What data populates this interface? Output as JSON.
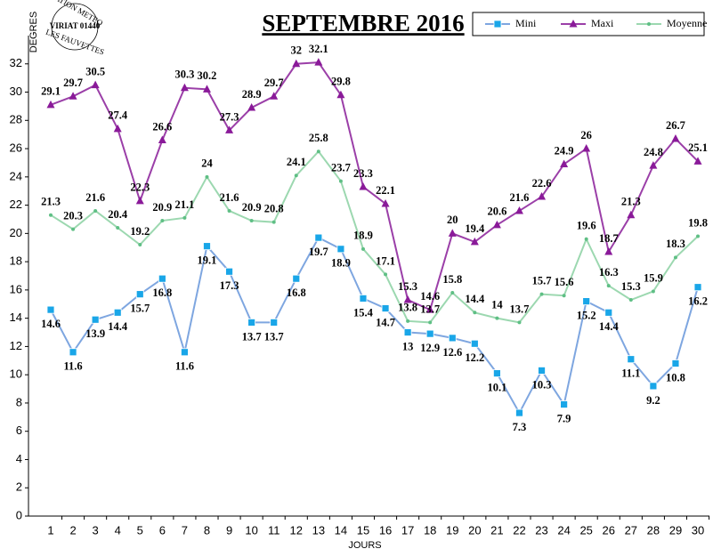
{
  "chart_data": {
    "type": "line",
    "title": "SEPTEMBRE 2016",
    "logo": [
      "STATION METEO",
      "VIRIAT 01440",
      "LES FAUVETTES"
    ],
    "y_label": "DEGRES",
    "x_label": "JOURS",
    "categories": [
      "1",
      "2",
      "3",
      "4",
      "5",
      "6",
      "7",
      "8",
      "9",
      "10",
      "11",
      "12",
      "13",
      "14",
      "15",
      "16",
      "17",
      "18",
      "19",
      "20",
      "21",
      "22",
      "23",
      "24",
      "25",
      "26",
      "27",
      "28",
      "29",
      "30"
    ],
    "series": [
      {
        "name": "Mini",
        "color": "#7ea6e0",
        "marker": "square",
        "marker_color": "#19a6e8",
        "label_side": "below",
        "values": [
          14.6,
          11.6,
          13.9,
          14.4,
          15.7,
          16.8,
          11.6,
          19.1,
          17.3,
          13.7,
          13.7,
          16.8,
          19.7,
          18.9,
          15.4,
          14.7,
          13,
          12.9,
          12.6,
          12.2,
          10.1,
          7.3,
          10.3,
          7.9,
          15.2,
          14.4,
          11.1,
          9.2,
          10.8,
          16.2
        ]
      },
      {
        "name": "Maxi",
        "color": "#9b3fa8",
        "marker": "triangle",
        "marker_color": "#8a1a99",
        "label_side": "above",
        "values": [
          29.1,
          29.7,
          30.5,
          27.4,
          22.3,
          26.6,
          30.3,
          30.2,
          27.3,
          28.9,
          29.7,
          32,
          32.1,
          29.8,
          23.3,
          22.1,
          15.3,
          14.6,
          20,
          19.4,
          20.6,
          21.6,
          22.6,
          24.9,
          26,
          18.7,
          21.3,
          24.8,
          26.7,
          25.1
        ]
      },
      {
        "name": "Moyenne",
        "color": "#9cd8b0",
        "marker": "dot",
        "marker_color": "#5fbf85",
        "label_side": "above",
        "values": [
          21.3,
          20.3,
          21.6,
          20.4,
          19.2,
          20.9,
          21.1,
          24,
          21.6,
          20.9,
          20.8,
          24.1,
          25.8,
          23.7,
          18.9,
          17.1,
          13.8,
          13.7,
          15.8,
          14.4,
          14,
          13.7,
          15.7,
          15.6,
          19.6,
          16.3,
          15.3,
          15.9,
          18.3,
          19.8
        ]
      }
    ],
    "ylim": [
      0,
      34
    ],
    "yticks": [
      0,
      2,
      4,
      6,
      8,
      10,
      12,
      14,
      16,
      18,
      20,
      22,
      24,
      26,
      28,
      30,
      32
    ],
    "grid": false,
    "legend": "top-right"
  }
}
